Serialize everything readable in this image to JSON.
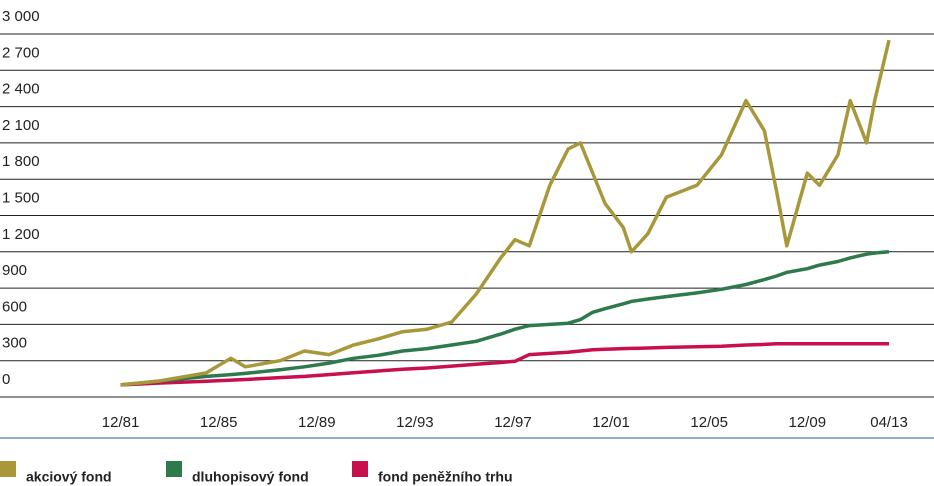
{
  "chart_data": {
    "type": "line",
    "x": [
      "1981-12",
      "1983-06",
      "1985-06",
      "1986-06",
      "1987-01",
      "1988-06",
      "1989-06",
      "1990-06",
      "1991-06",
      "1992-06",
      "1993-06",
      "1994-06",
      "1995-06",
      "1996-06",
      "1997-06",
      "1998-01",
      "1998-08",
      "1999-06",
      "2000-03",
      "2000-09",
      "2001-03",
      "2001-09",
      "2002-06",
      "2002-10",
      "2003-06",
      "2004-03",
      "2005-06",
      "2006-06",
      "2007-06",
      "2008-03",
      "2008-09",
      "2009-02",
      "2009-12",
      "2010-06",
      "2011-03",
      "2011-09",
      "2012-05",
      "2012-09",
      "2013-04"
    ],
    "series": [
      {
        "name": "akciový fond",
        "color": "#a8983a",
        "values": [
          100,
          130,
          200,
          320,
          250,
          300,
          380,
          350,
          430,
          480,
          540,
          560,
          620,
          850,
          1150,
          1300,
          1250,
          1750,
          2050,
          2100,
          1850,
          1600,
          1400,
          1200,
          1350,
          1650,
          1750,
          2000,
          2450,
          2200,
          1700,
          1250,
          1850,
          1750,
          2000,
          2450,
          2100,
          2450,
          2950
        ]
      },
      {
        "name": "dluhopisový fond",
        "color": "#2e7a4c",
        "values": [
          100,
          130,
          170,
          185,
          195,
          225,
          250,
          280,
          320,
          345,
          380,
          400,
          430,
          460,
          520,
          560,
          590,
          600,
          610,
          640,
          700,
          730,
          770,
          790,
          810,
          830,
          860,
          890,
          930,
          970,
          1000,
          1030,
          1060,
          1090,
          1120,
          1150,
          1180,
          1190,
          1200
        ]
      },
      {
        "name": "fond peněžního trhu",
        "color": "#c8104e",
        "values": [
          100,
          115,
          130,
          140,
          145,
          160,
          170,
          185,
          200,
          215,
          230,
          240,
          255,
          270,
          285,
          295,
          350,
          360,
          370,
          380,
          390,
          395,
          400,
          402,
          405,
          410,
          415,
          420,
          430,
          435,
          440,
          440,
          440,
          440,
          440,
          440,
          440,
          440,
          440
        ]
      }
    ],
    "xlim": [
      "1977-01",
      "2015-02"
    ],
    "xticks": [
      {
        "value": "1981-12",
        "label": "12/81"
      },
      {
        "value": "1985-12",
        "label": "12/85"
      },
      {
        "value": "1989-12",
        "label": "12/89"
      },
      {
        "value": "1993-12",
        "label": "12/93"
      },
      {
        "value": "1997-12",
        "label": "12/97"
      },
      {
        "value": "2001-12",
        "label": "12/01"
      },
      {
        "value": "2005-12",
        "label": "12/05"
      },
      {
        "value": "2009-12",
        "label": "12/09"
      },
      {
        "value": "2013-04",
        "label": "04/13"
      }
    ],
    "ylim": [
      0,
      3000
    ],
    "yticks": [
      0,
      300,
      600,
      900,
      {
        "value": 1200,
        "label": "1 200"
      },
      {
        "value": 1500,
        "label": "1 500"
      },
      {
        "value": 1800,
        "label": "1 800"
      },
      {
        "value": 2100,
        "label": "2 100"
      },
      {
        "value": 2400,
        "label": "2 400"
      },
      {
        "value": 2700,
        "label": "2 700"
      },
      {
        "value": 3000,
        "label": "3 000"
      }
    ],
    "grid": true,
    "legend": "bottom"
  }
}
